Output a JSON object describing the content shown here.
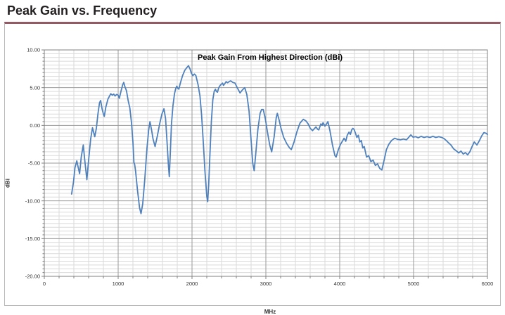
{
  "page": {
    "title": "Peak Gain vs. Frequency"
  },
  "panel": {
    "top_accent_color": "#945a64",
    "border_color": "#b9b9b9"
  },
  "chart_data": {
    "type": "line",
    "title": "Peak Gain From Highest Direction (dBi)",
    "xlabel": "MHz",
    "ylabel": "dBi",
    "xlim": [
      0,
      6000
    ],
    "ylim": [
      -20,
      10
    ],
    "x_major_ticks": [
      0,
      1000,
      2000,
      3000,
      4000,
      5000,
      6000
    ],
    "x_minor_step": 200,
    "y_major_ticks": [
      10,
      5,
      0,
      -5,
      -10,
      -15,
      -20
    ],
    "y_minor_step": 0.5,
    "grid": true,
    "legend": "none",
    "line_color": "#4f81bd",
    "major_grid_color": "#9a9a9a",
    "minor_grid_color": "#dadada",
    "axis_color": "#808080",
    "series": [
      {
        "name": "Peak Gain From Highest Direction",
        "points": [
          [
            370,
            -9.1
          ],
          [
            395,
            -7.5
          ],
          [
            415,
            -5.6
          ],
          [
            440,
            -4.7
          ],
          [
            455,
            -5.4
          ],
          [
            478,
            -6.4
          ],
          [
            500,
            -4.2
          ],
          [
            528,
            -2.6
          ],
          [
            548,
            -4.6
          ],
          [
            576,
            -7.2
          ],
          [
            600,
            -4.6
          ],
          [
            628,
            -1.8
          ],
          [
            652,
            -0.3
          ],
          [
            668,
            -0.9
          ],
          [
            683,
            -1.5
          ],
          [
            705,
            -0.4
          ],
          [
            725,
            1.4
          ],
          [
            748,
            3.0
          ],
          [
            763,
            3.3
          ],
          [
            782,
            2.2
          ],
          [
            800,
            1.5
          ],
          [
            812,
            1.2
          ],
          [
            832,
            2.4
          ],
          [
            862,
            3.5
          ],
          [
            900,
            4.2
          ],
          [
            922,
            4.0
          ],
          [
            940,
            4.15
          ],
          [
            958,
            3.9
          ],
          [
            980,
            4.1
          ],
          [
            1000,
            4.0
          ],
          [
            1016,
            3.6
          ],
          [
            1040,
            4.6
          ],
          [
            1062,
            5.4
          ],
          [
            1075,
            5.7
          ],
          [
            1092,
            5.1
          ],
          [
            1112,
            4.6
          ],
          [
            1135,
            3.3
          ],
          [
            1158,
            2.3
          ],
          [
            1180,
            0.4
          ],
          [
            1200,
            -2.2
          ],
          [
            1213,
            -4.9
          ],
          [
            1224,
            -5.2
          ],
          [
            1235,
            -6.0
          ],
          [
            1262,
            -8.6
          ],
          [
            1290,
            -10.9
          ],
          [
            1310,
            -11.7
          ],
          [
            1332,
            -10.4
          ],
          [
            1360,
            -7.2
          ],
          [
            1390,
            -3.1
          ],
          [
            1413,
            -0.6
          ],
          [
            1430,
            0.5
          ],
          [
            1452,
            -0.6
          ],
          [
            1472,
            -1.8
          ],
          [
            1500,
            -2.8
          ],
          [
            1530,
            -1.4
          ],
          [
            1562,
            0.2
          ],
          [
            1592,
            1.5
          ],
          [
            1620,
            2.2
          ],
          [
            1642,
            0.9
          ],
          [
            1662,
            -2.2
          ],
          [
            1680,
            -5.2
          ],
          [
            1692,
            -6.8
          ],
          [
            1706,
            -3.8
          ],
          [
            1722,
            0.2
          ],
          [
            1742,
            2.6
          ],
          [
            1763,
            4.2
          ],
          [
            1780,
            4.9
          ],
          [
            1794,
            5.2
          ],
          [
            1808,
            4.9
          ],
          [
            1822,
            4.8
          ],
          [
            1842,
            5.6
          ],
          [
            1872,
            6.6
          ],
          [
            1902,
            7.3
          ],
          [
            1932,
            7.7
          ],
          [
            1952,
            7.9
          ],
          [
            1972,
            7.5
          ],
          [
            1992,
            6.9
          ],
          [
            2012,
            6.6
          ],
          [
            2032,
            6.8
          ],
          [
            2052,
            6.6
          ],
          [
            2082,
            5.4
          ],
          [
            2108,
            3.9
          ],
          [
            2130,
            1.4
          ],
          [
            2152,
            -2.2
          ],
          [
            2176,
            -6.2
          ],
          [
            2200,
            -9.4
          ],
          [
            2212,
            -10.1
          ],
          [
            2226,
            -7.9
          ],
          [
            2242,
            -4.0
          ],
          [
            2262,
            0.5
          ],
          [
            2282,
            3.4
          ],
          [
            2300,
            4.5
          ],
          [
            2317,
            4.8
          ],
          [
            2330,
            4.5
          ],
          [
            2345,
            4.4
          ],
          [
            2362,
            5.0
          ],
          [
            2382,
            5.3
          ],
          [
            2402,
            5.5
          ],
          [
            2414,
            5.6
          ],
          [
            2426,
            5.3
          ],
          [
            2442,
            5.5
          ],
          [
            2462,
            5.8
          ],
          [
            2482,
            5.65
          ],
          [
            2502,
            5.8
          ],
          [
            2524,
            5.9
          ],
          [
            2552,
            5.7
          ],
          [
            2583,
            5.6
          ],
          [
            2612,
            5.0
          ],
          [
            2650,
            4.3
          ],
          [
            2682,
            4.7
          ],
          [
            2714,
            5.0
          ],
          [
            2742,
            4.1
          ],
          [
            2772,
            1.9
          ],
          [
            2802,
            -2.2
          ],
          [
            2822,
            -5.0
          ],
          [
            2842,
            -6.0
          ],
          [
            2862,
            -3.9
          ],
          [
            2892,
            -0.5
          ],
          [
            2922,
            1.6
          ],
          [
            2942,
            2.1
          ],
          [
            2965,
            2.1
          ],
          [
            2992,
            0.9
          ],
          [
            3022,
            -0.9
          ],
          [
            3052,
            -2.6
          ],
          [
            3079,
            -3.5
          ],
          [
            3112,
            -1.5
          ],
          [
            3140,
            1.0
          ],
          [
            3155,
            1.6
          ],
          [
            3180,
            0.7
          ],
          [
            3203,
            -0.3
          ],
          [
            3242,
            -1.6
          ],
          [
            3282,
            -2.4
          ],
          [
            3322,
            -3.0
          ],
          [
            3345,
            -3.2
          ],
          [
            3382,
            -2.2
          ],
          [
            3422,
            -0.8
          ],
          [
            3462,
            0.3
          ],
          [
            3507,
            0.8
          ],
          [
            3542,
            0.6
          ],
          [
            3572,
            0.2
          ],
          [
            3602,
            -0.4
          ],
          [
            3631,
            -0.7
          ],
          [
            3660,
            -0.4
          ],
          [
            3678,
            -0.2
          ],
          [
            3700,
            -0.5
          ],
          [
            3716,
            -0.6
          ],
          [
            3745,
            0.2
          ],
          [
            3762,
            0.0
          ],
          [
            3774,
            0.35
          ],
          [
            3800,
            -0.1
          ],
          [
            3822,
            0.2
          ],
          [
            3840,
            0.5
          ],
          [
            3868,
            -0.7
          ],
          [
            3902,
            -2.6
          ],
          [
            3935,
            -4.0
          ],
          [
            3951,
            -4.2
          ],
          [
            3982,
            -3.2
          ],
          [
            4011,
            -2.5
          ],
          [
            4042,
            -2.0
          ],
          [
            4059,
            -1.7
          ],
          [
            4082,
            -2.1
          ],
          [
            4102,
            -1.3
          ],
          [
            4126,
            -0.9
          ],
          [
            4145,
            -1.2
          ],
          [
            4162,
            -0.6
          ],
          [
            4178,
            -0.4
          ],
          [
            4192,
            -0.5
          ],
          [
            4212,
            -1.0
          ],
          [
            4232,
            -1.6
          ],
          [
            4252,
            -1.3
          ],
          [
            4272,
            -2.2
          ],
          [
            4292,
            -2.0
          ],
          [
            4312,
            -3.0
          ],
          [
            4332,
            -2.8
          ],
          [
            4364,
            -4.2
          ],
          [
            4392,
            -4.0
          ],
          [
            4422,
            -4.8
          ],
          [
            4452,
            -4.6
          ],
          [
            4482,
            -5.3
          ],
          [
            4512,
            -5.1
          ],
          [
            4542,
            -5.7
          ],
          [
            4570,
            -5.9
          ],
          [
            4602,
            -4.6
          ],
          [
            4632,
            -3.2
          ],
          [
            4665,
            -2.5
          ],
          [
            4702,
            -2.0
          ],
          [
            4744,
            -1.7
          ],
          [
            4782,
            -1.85
          ],
          [
            4822,
            -1.9
          ],
          [
            4862,
            -1.8
          ],
          [
            4906,
            -1.9
          ],
          [
            4942,
            -1.5
          ],
          [
            4963,
            -1.25
          ],
          [
            4992,
            -1.55
          ],
          [
            5032,
            -1.5
          ],
          [
            5062,
            -1.65
          ],
          [
            5102,
            -1.45
          ],
          [
            5142,
            -1.6
          ],
          [
            5182,
            -1.5
          ],
          [
            5222,
            -1.6
          ],
          [
            5262,
            -1.45
          ],
          [
            5302,
            -1.6
          ],
          [
            5342,
            -1.5
          ],
          [
            5382,
            -1.6
          ],
          [
            5412,
            -1.75
          ],
          [
            5442,
            -2.0
          ],
          [
            5472,
            -2.3
          ],
          [
            5506,
            -2.6
          ],
          [
            5542,
            -3.1
          ],
          [
            5582,
            -3.4
          ],
          [
            5612,
            -3.65
          ],
          [
            5642,
            -3.4
          ],
          [
            5672,
            -3.8
          ],
          [
            5702,
            -3.6
          ],
          [
            5732,
            -3.9
          ],
          [
            5762,
            -3.5
          ],
          [
            5792,
            -2.8
          ],
          [
            5822,
            -2.2
          ],
          [
            5858,
            -2.6
          ],
          [
            5892,
            -2.0
          ],
          [
            5922,
            -1.4
          ],
          [
            5953,
            -0.95
          ],
          [
            5982,
            -1.05
          ],
          [
            6000,
            -1.2
          ]
        ]
      }
    ]
  }
}
